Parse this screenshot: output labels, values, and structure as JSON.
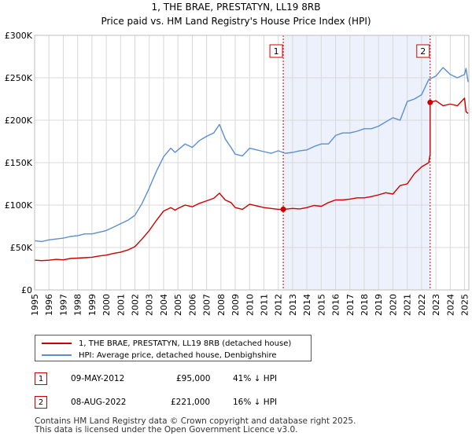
{
  "chart_data": {
    "type": "line",
    "title": "1, THE BRAE, PRESTATYN, LL19 8RB",
    "subtitle": "Price paid vs. HM Land Registry's House Price Index (HPI)",
    "xlabel": "",
    "ylabel": "",
    "xlim": [
      1995,
      2025.3
    ],
    "ylim": [
      0,
      300000
    ],
    "x_ticks": [
      "1995",
      "1996",
      "1997",
      "1998",
      "1999",
      "2000",
      "2001",
      "2002",
      "2003",
      "2004",
      "2005",
      "2006",
      "2007",
      "2008",
      "2009",
      "2010",
      "2011",
      "2012",
      "2013",
      "2014",
      "2015",
      "2016",
      "2017",
      "2018",
      "2019",
      "2020",
      "2021",
      "2022",
      "2023",
      "2024",
      "2025"
    ],
    "y_ticks": [
      {
        "value": 0,
        "label": "£0"
      },
      {
        "value": 50000,
        "label": "£50K"
      },
      {
        "value": 100000,
        "label": "£100K"
      },
      {
        "value": 150000,
        "label": "£150K"
      },
      {
        "value": 200000,
        "label": "£200K"
      },
      {
        "value": 250000,
        "label": "£250K"
      },
      {
        "value": 300000,
        "label": "£300K"
      }
    ],
    "grid": true,
    "highlight_span": [
      2012.35,
      2022.6
    ],
    "series": [
      {
        "name": "1, THE BRAE, PRESTATYN, LL19 8RB (detached house)",
        "color": "#cc0000",
        "x": [
          1995.0,
          1995.5,
          1996.0,
          1996.5,
          1997.0,
          1997.5,
          1998.0,
          1998.5,
          1999.0,
          1999.5,
          2000.0,
          2000.5,
          2001.0,
          2001.5,
          2002.0,
          2002.5,
          2003.0,
          2003.5,
          2004.0,
          2004.5,
          2004.8,
          2005.0,
          2005.5,
          2006.0,
          2006.5,
          2007.0,
          2007.5,
          2007.9,
          2008.3,
          2008.7,
          2009.0,
          2009.5,
          2010.0,
          2010.5,
          2011.0,
          2011.5,
          2012.0,
          2012.35,
          2012.35,
          2013.0,
          2013.5,
          2014.0,
          2014.5,
          2015.0,
          2015.5,
          2016.0,
          2016.5,
          2017.0,
          2017.5,
          2018.0,
          2018.5,
          2019.0,
          2019.5,
          2020.0,
          2020.5,
          2021.0,
          2021.5,
          2022.0,
          2022.5,
          2022.6,
          2022.6,
          2023.0,
          2023.5,
          2024.0,
          2024.5,
          2025.0,
          2025.1,
          2025.25
        ],
        "values": [
          35000,
          34500,
          35000,
          36000,
          35500,
          37000,
          37500,
          38000,
          38500,
          40000,
          41000,
          43000,
          44500,
          47000,
          51000,
          60000,
          70000,
          82000,
          93000,
          97000,
          94000,
          96000,
          100000,
          98000,
          102000,
          105000,
          108000,
          114000,
          106000,
          103000,
          97000,
          95000,
          101000,
          99000,
          97000,
          96000,
          95000,
          95000,
          95000,
          96000,
          95500,
          97000,
          99500,
          98500,
          103000,
          106000,
          106000,
          107000,
          108500,
          108500,
          110000,
          112000,
          114500,
          113000,
          123000,
          125000,
          137000,
          145000,
          150000,
          160000,
          221000,
          223000,
          217000,
          219000,
          217000,
          226000,
          210000,
          208000
        ]
      },
      {
        "name": "HPI: Average price, detached house, Denbighshire",
        "color": "#5b8fd0",
        "x": [
          1995.0,
          1995.5,
          1996.0,
          1996.5,
          1997.0,
          1997.5,
          1998.0,
          1998.5,
          1999.0,
          1999.5,
          2000.0,
          2000.5,
          2001.0,
          2001.5,
          2002.0,
          2002.5,
          2003.0,
          2003.5,
          2004.0,
          2004.5,
          2004.8,
          2005.0,
          2005.5,
          2006.0,
          2006.5,
          2007.0,
          2007.5,
          2007.9,
          2008.3,
          2008.7,
          2009.0,
          2009.5,
          2010.0,
          2010.5,
          2011.0,
          2011.5,
          2012.0,
          2012.5,
          2013.0,
          2013.5,
          2014.0,
          2014.5,
          2015.0,
          2015.5,
          2016.0,
          2016.5,
          2017.0,
          2017.5,
          2018.0,
          2018.5,
          2019.0,
          2019.5,
          2020.0,
          2020.5,
          2021.0,
          2021.5,
          2022.0,
          2022.5,
          2023.0,
          2023.5,
          2024.0,
          2024.5,
          2025.0,
          2025.1,
          2025.25
        ],
        "values": [
          58000,
          57000,
          59000,
          60000,
          61000,
          63000,
          64000,
          66000,
          66000,
          68000,
          70000,
          74000,
          78000,
          82000,
          88000,
          102000,
          120000,
          140000,
          157000,
          167000,
          162000,
          165000,
          172000,
          168000,
          176000,
          181000,
          185000,
          195000,
          178000,
          168000,
          160000,
          158000,
          167000,
          165000,
          163000,
          161000,
          164000,
          161000,
          162000,
          164000,
          165000,
          169000,
          172000,
          172000,
          182000,
          185000,
          185000,
          187000,
          190000,
          190000,
          193000,
          198000,
          203000,
          200000,
          222000,
          225000,
          230000,
          248000,
          252000,
          262000,
          254000,
          250000,
          254000,
          261000,
          245000
        ]
      }
    ],
    "markers": [
      {
        "label": "1",
        "x": 2012.35,
        "value": 95000
      },
      {
        "label": "2",
        "x": 2022.6,
        "value": 221000
      }
    ]
  },
  "legend": {
    "items": [
      {
        "label": "1, THE BRAE, PRESTATYN, LL19 8RB (detached house)",
        "color": "#cc0000"
      },
      {
        "label": "HPI: Average price, detached house, Denbighshire",
        "color": "#5b8fd0"
      }
    ]
  },
  "transactions": [
    {
      "marker": "1",
      "date": "09-MAY-2012",
      "price": "£95,000",
      "hpi": "41% ↓ HPI"
    },
    {
      "marker": "2",
      "date": "08-AUG-2022",
      "price": "£221,000",
      "hpi": "16% ↓ HPI"
    }
  ],
  "footer": {
    "line1": "Contains HM Land Registry data © Crown copyright and database right 2025.",
    "line2": "This data is licensed under the Open Government Licence v3.0."
  }
}
